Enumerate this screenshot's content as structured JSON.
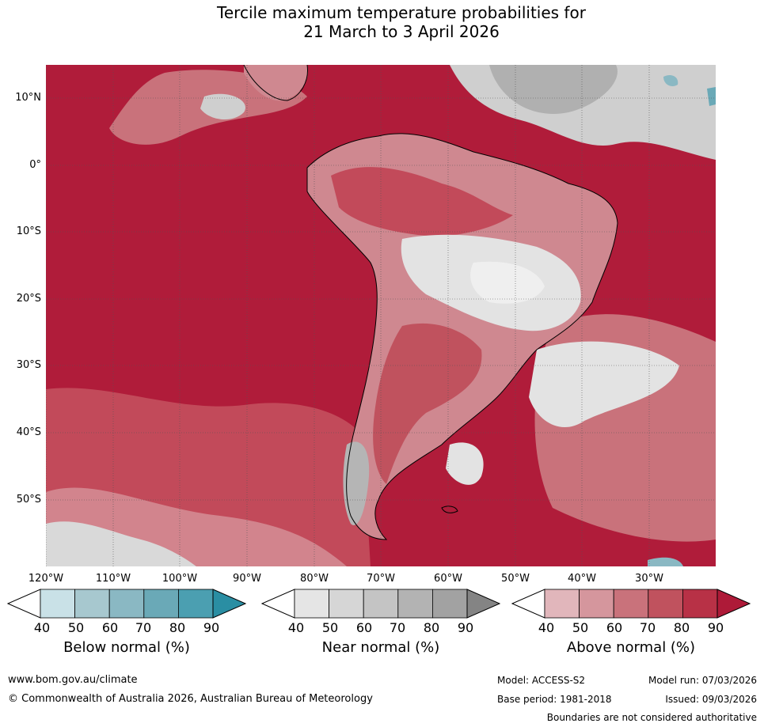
{
  "title": {
    "line1": "Tercile maximum temperature probabilities for",
    "line2": "21 March to 3 April 2026"
  },
  "map": {
    "lat_labels": [
      "10°N",
      "0°",
      "10°S",
      "20°S",
      "30°S",
      "40°S",
      "50°S"
    ],
    "lon_labels": [
      "120°W",
      "110°W",
      "100°W",
      "90°W",
      "80°W",
      "70°W",
      "60°W",
      "50°W",
      "40°W",
      "30°W"
    ]
  },
  "colorbars": [
    {
      "label": "Below normal (%)",
      "ticks": [
        "40",
        "50",
        "60",
        "70",
        "80",
        "90"
      ],
      "colors": [
        "#ffffff",
        "#c9e1e7",
        "#a7c8cf",
        "#8ab8c3",
        "#6aa9b7",
        "#4b9fb1",
        "#2a8ea3"
      ]
    },
    {
      "label": "Near normal (%)",
      "ticks": [
        "40",
        "50",
        "60",
        "70",
        "80",
        "90"
      ],
      "colors": [
        "#ffffff",
        "#e5e5e5",
        "#d6d6d6",
        "#c4c4c4",
        "#b3b3b3",
        "#a2a2a2",
        "#848484"
      ]
    },
    {
      "label": "Above normal (%)",
      "ticks": [
        "40",
        "50",
        "60",
        "70",
        "80",
        "90"
      ],
      "colors": [
        "#ffffff",
        "#e1b6bb",
        "#d5969d",
        "#c9727b",
        "#c0525e",
        "#b83146",
        "#ae1a38"
      ]
    }
  ],
  "footer": {
    "url": "www.bom.gov.au/climate",
    "copyright": "© Commonwealth of Australia 2026, Australian Bureau of Meteorology",
    "model": "Model: ACCESS-S2",
    "base_period": "Base period: 1981-2018",
    "model_run": "Model run: 07/03/2026",
    "issued": "Issued: 09/03/2026",
    "disclaimer": "Boundaries are not considered authoritative"
  }
}
